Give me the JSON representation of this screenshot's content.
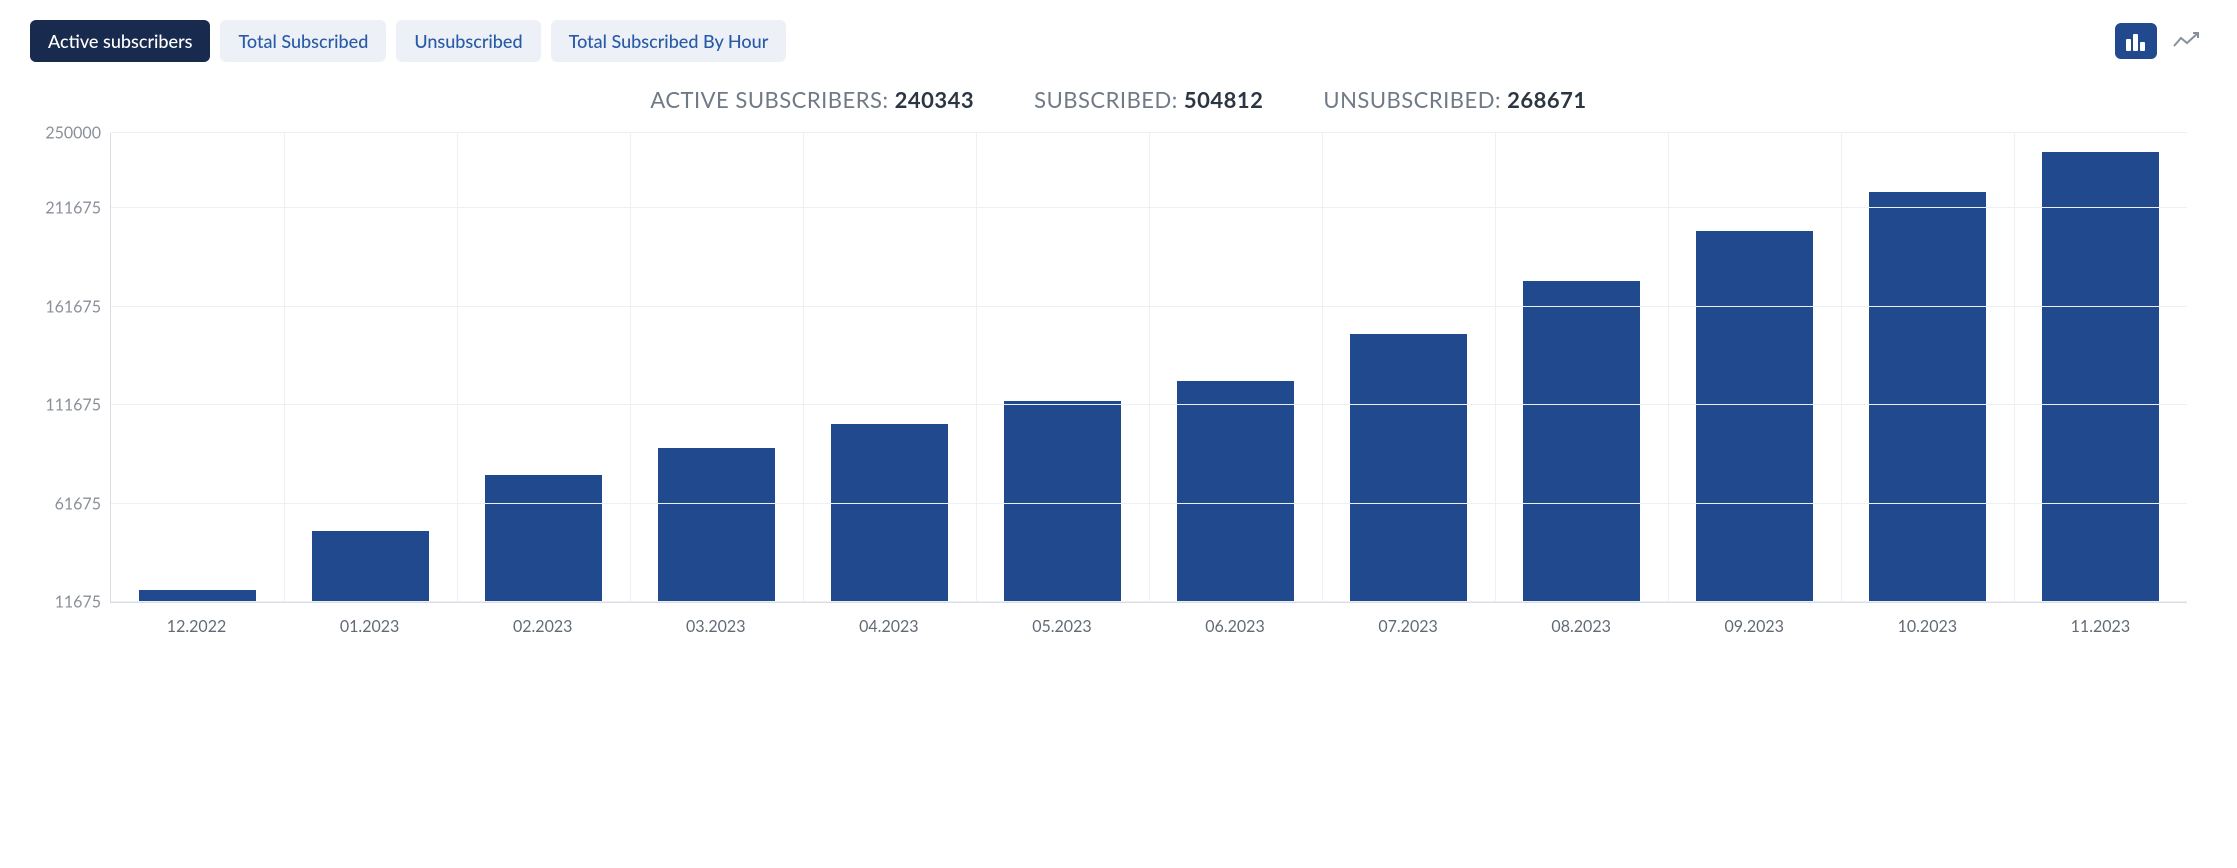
{
  "tabs": [
    {
      "label": "Active subscribers",
      "active": true
    },
    {
      "label": "Total Subscribed",
      "active": false
    },
    {
      "label": "Unsubscribed",
      "active": false
    },
    {
      "label": "Total Subscribed By Hour",
      "active": false
    }
  ],
  "summary": {
    "active_label": "ACTIVE SUBSCRIBERS: ",
    "active_value": "240343",
    "subscribed_label": "SUBSCRIBED: ",
    "subscribed_value": "504812",
    "unsubscribed_label": "UNSUBSCRIBED: ",
    "unsubscribed_value": "268671"
  },
  "chart": {
    "type": "bar",
    "bar_color": "#214a8e",
    "background_color": "#ffffff",
    "grid_color": "#eceff3",
    "axis_color": "#d9dee5",
    "label_color": "#8a9099",
    "bar_width_ratio": 0.68,
    "ylim": [
      11675,
      250000
    ],
    "y_ticks": [
      11675,
      61675,
      111675,
      161675,
      211675,
      250000
    ],
    "categories": [
      "12.2022",
      "01.2023",
      "02.2023",
      "03.2023",
      "04.2023",
      "05.2023",
      "06.2023",
      "07.2023",
      "08.2023",
      "09.2023",
      "10.2023",
      "11.2023"
    ],
    "values": [
      18000,
      48000,
      76000,
      90000,
      102000,
      114000,
      124000,
      148000,
      175000,
      200000,
      220000,
      240343
    ]
  }
}
